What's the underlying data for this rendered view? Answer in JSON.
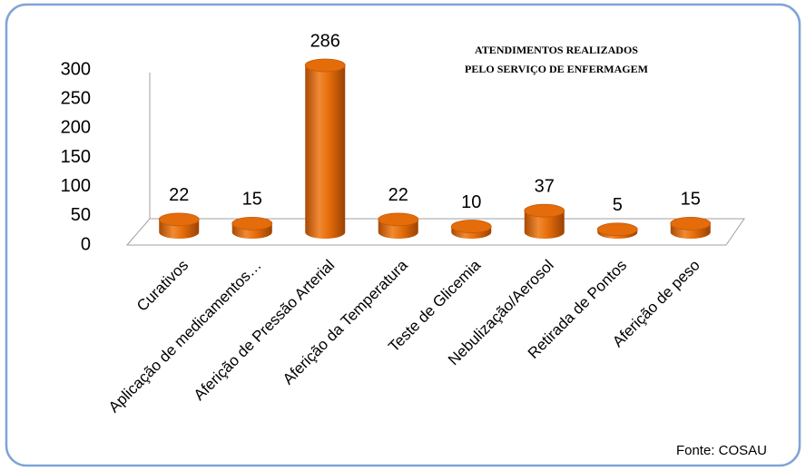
{
  "chart_data": {
    "type": "bar",
    "title": [
      "ATENDIMENTOS REALIZADOS",
      "PELO SERVIÇO DE ENFERMAGEM"
    ],
    "categories": [
      "Curativos",
      "Aplicação de medicamentos…",
      "Aferição de Pressão Arterial",
      "Aferição da Temperatura",
      "Teste de Glicemia",
      "Nebulização/Aerosol",
      "Retirada de Pontos",
      "Aferição de peso"
    ],
    "values": [
      22,
      15,
      286,
      22,
      10,
      37,
      5,
      15
    ],
    "color": "#e46c0a",
    "ylim": [
      0,
      300
    ],
    "yticks": [
      0,
      50,
      100,
      150,
      200,
      250,
      300
    ],
    "grid": false,
    "source": "Fonte: COSAU"
  }
}
